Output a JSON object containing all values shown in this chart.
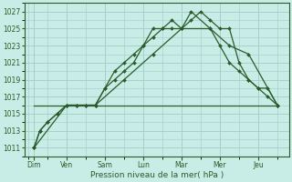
{
  "background_color": "#c8ece6",
  "grid_color": "#a0ccc6",
  "line_color": "#2a5c2a",
  "xlabel": "Pression niveau de la mer( hPa )",
  "ylim": [
    1010,
    1028
  ],
  "ytick_vals": [
    1011,
    1013,
    1015,
    1017,
    1019,
    1021,
    1023,
    1025,
    1027
  ],
  "xlim": [
    -0.1,
    6.8
  ],
  "day_labels": [
    "Dim",
    "Ven",
    "Sam",
    "Lun",
    "Mar",
    "Mer",
    "Jeu"
  ],
  "day_positions": [
    0.15,
    1.0,
    2.0,
    3.0,
    4.0,
    5.0,
    6.0
  ],
  "line1_x": [
    0.15,
    0.3,
    0.5,
    0.75,
    1.0,
    1.25,
    1.5,
    1.75,
    2.0,
    2.25,
    2.5,
    2.75,
    3.0,
    3.25,
    3.5,
    3.75,
    4.0,
    4.25,
    4.5,
    4.75,
    5.0,
    5.25,
    5.5,
    5.75,
    6.0,
    6.25,
    6.5
  ],
  "line1_y": [
    1011,
    1013,
    1014,
    1015,
    1016,
    1016,
    1016,
    1016,
    1018,
    1019,
    1020,
    1021,
    1023,
    1024,
    1025,
    1025,
    1025,
    1026,
    1027,
    1026,
    1025,
    1025,
    1021,
    1019,
    1018,
    1017,
    1016
  ],
  "line2_x": [
    0.15,
    0.3,
    0.5,
    0.75,
    1.0,
    1.25,
    1.5,
    1.75,
    2.0,
    2.25,
    2.5,
    2.75,
    3.0,
    3.25,
    3.5,
    3.75,
    4.0,
    4.25,
    4.75,
    5.0,
    5.25,
    5.5,
    5.75,
    6.0,
    6.25,
    6.5
  ],
  "line2_y": [
    1011,
    1013,
    1014,
    1015,
    1016,
    1016,
    1016,
    1016,
    1018,
    1020,
    1021,
    1022,
    1023,
    1025,
    1025,
    1026,
    1025,
    1027,
    1025,
    1023,
    1021,
    1020,
    1019,
    1018,
    1018,
    1016
  ],
  "line3_x": [
    0.15,
    1.0,
    1.75,
    2.5,
    3.25,
    4.0,
    4.75,
    5.25,
    5.75,
    6.5
  ],
  "line3_y": [
    1011,
    1016,
    1016,
    1019,
    1022,
    1025,
    1025,
    1023,
    1022,
    1016
  ],
  "line4_x": [
    0.15,
    1.0,
    2.0,
    3.0,
    4.0,
    4.75,
    5.5,
    6.5
  ],
  "line4_y": [
    1016,
    1016,
    1016,
    1016,
    1016,
    1016,
    1016,
    1016
  ]
}
